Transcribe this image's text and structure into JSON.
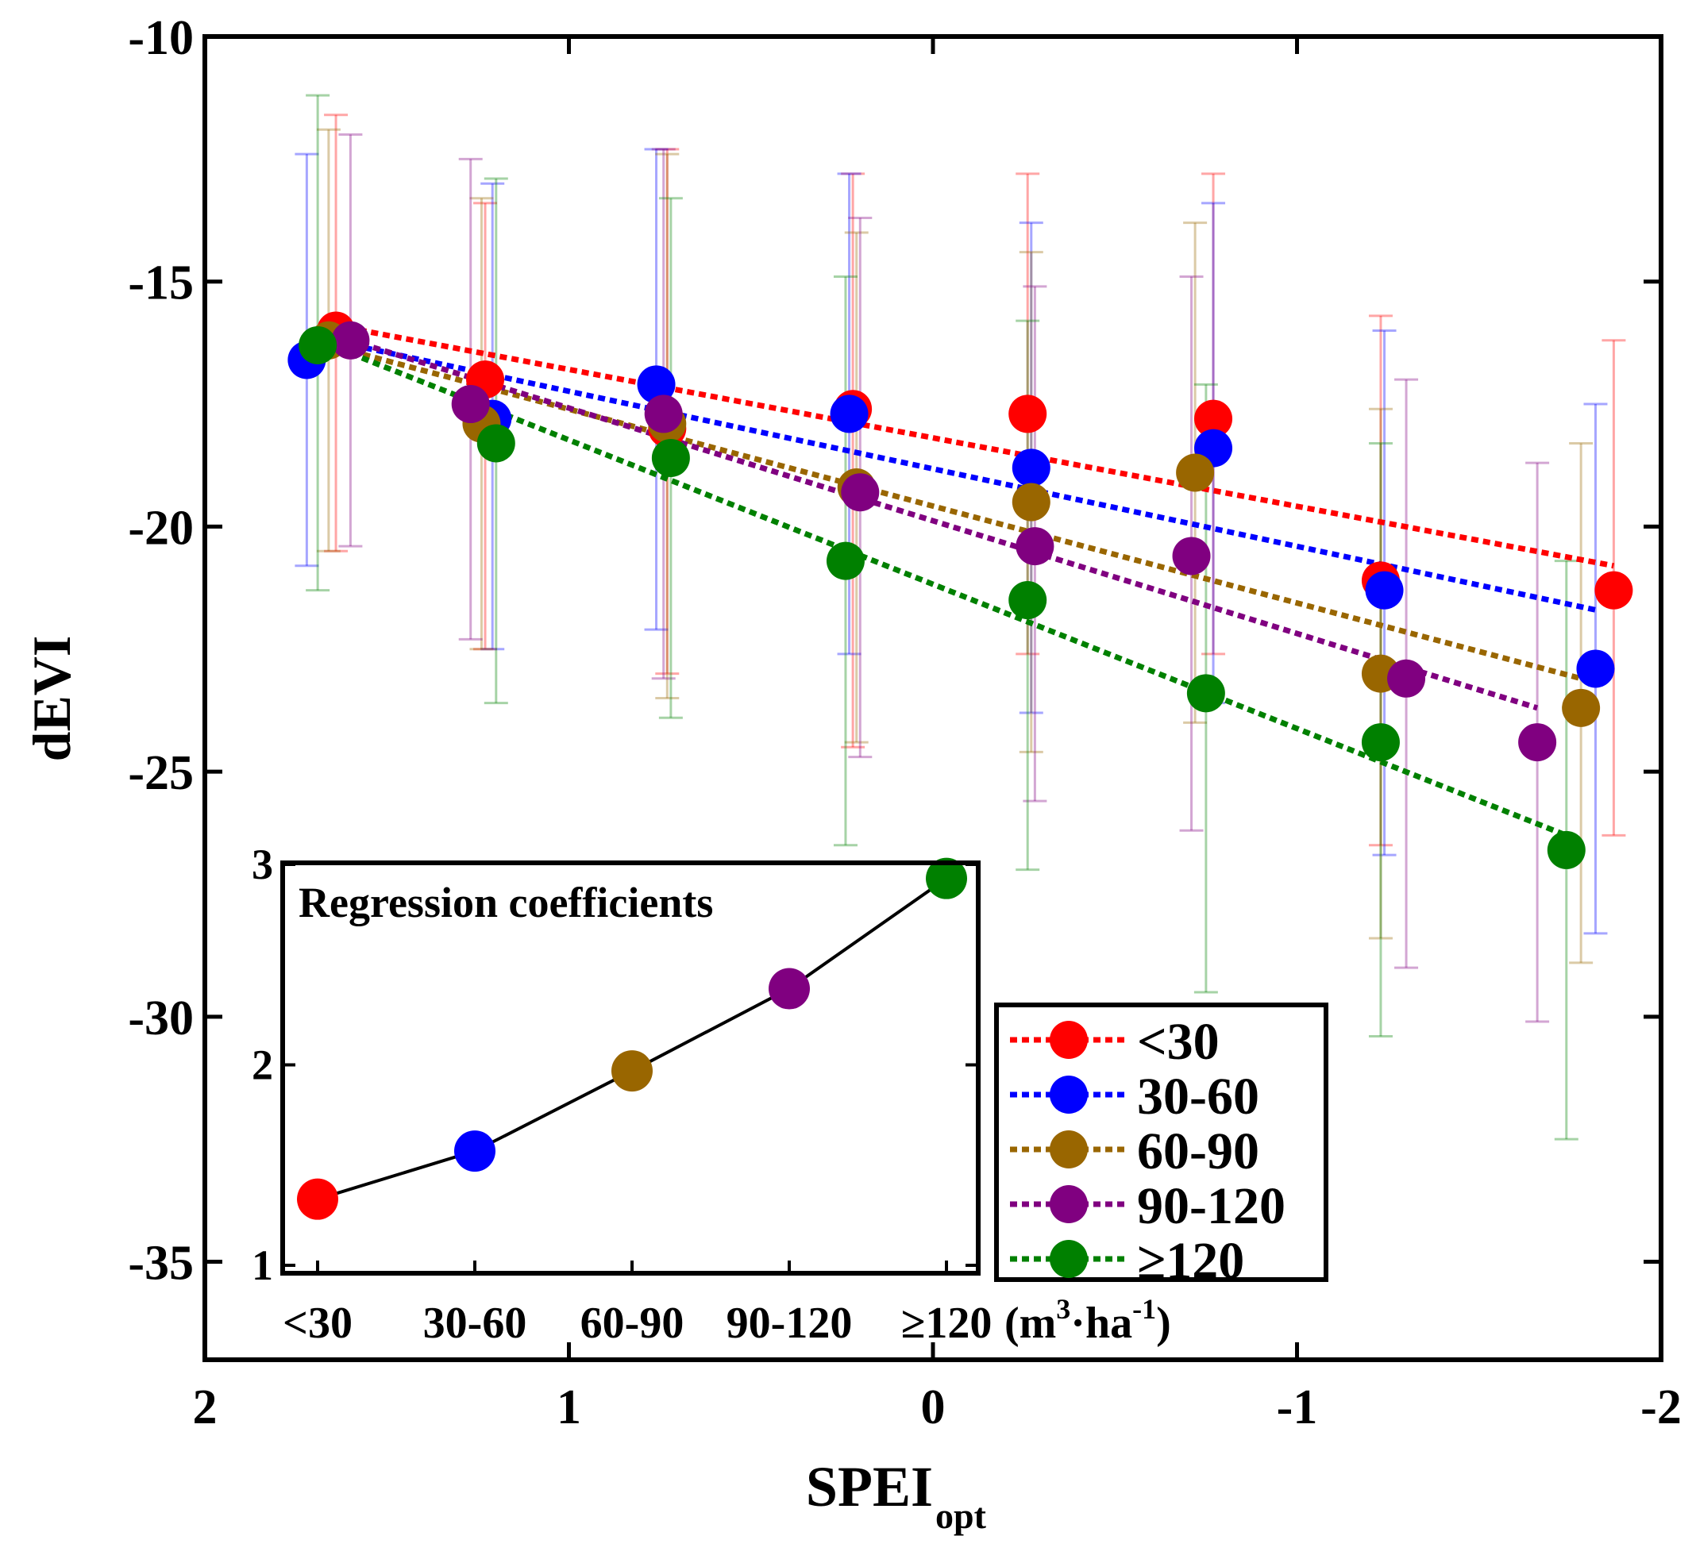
{
  "chart_data": [
    {
      "type": "scatter",
      "title": "",
      "xlabel": "SPEI",
      "xlabel_subscript": "opt",
      "ylabel": "dEVI",
      "xlim": [
        2,
        -2
      ],
      "ylim": [
        -37,
        -10
      ],
      "x_ticks": [
        2,
        1,
        0,
        -1,
        -2
      ],
      "x_tick_labels": [
        "2",
        "1",
        "0",
        "-1",
        "-2"
      ],
      "y_ticks": [
        -10,
        -15,
        -20,
        -25,
        -30,
        -35
      ],
      "y_tick_labels": [
        "-10",
        "-15",
        "-20",
        "-25",
        "-30",
        "-35"
      ],
      "grid": false,
      "legend_position": "lower-right",
      "series": [
        {
          "name": "<30",
          "color": "#ff0000",
          "x": [
            1.64,
            1.23,
            0.73,
            0.22,
            -0.26,
            -0.77,
            -1.23,
            -1.87
          ],
          "y": [
            -16.0,
            -17.0,
            -18.0,
            -17.6,
            -17.7,
            -17.8,
            -21.1,
            -21.3
          ],
          "err_low": [
            -20.5,
            -22.5,
            -23.0,
            -24.5,
            -22.6,
            -22.6,
            -26.5,
            -26.3
          ],
          "err_high": [
            -11.6,
            -13.4,
            -12.3,
            -12.8,
            -12.8,
            -12.8,
            -15.7,
            -16.2
          ],
          "fit_x": [
            1.64,
            -1.87
          ],
          "fit_y": [
            -15.9,
            -20.8
          ]
        },
        {
          "name": "30-60",
          "color": "#0000ff",
          "x": [
            1.72,
            1.21,
            0.76,
            0.23,
            -0.27,
            -0.77,
            -1.24,
            -1.82
          ],
          "y": [
            -16.6,
            -17.8,
            -17.1,
            -17.7,
            -18.8,
            -18.4,
            -21.3,
            -22.9
          ],
          "err_low": [
            -20.8,
            -22.5,
            -22.1,
            -22.6,
            -23.8,
            -23.6,
            -26.7,
            -28.3
          ],
          "err_high": [
            -12.4,
            -13.0,
            -12.3,
            -12.8,
            -13.8,
            -13.4,
            -16.0,
            -17.5
          ],
          "fit_x": [
            1.72,
            -1.82
          ],
          "fit_y": [
            -16.1,
            -21.7
          ]
        },
        {
          "name": "60-90",
          "color": "#996600",
          "x": [
            1.66,
            1.24,
            0.73,
            0.21,
            -0.27,
            -0.72,
            -1.23,
            -1.78
          ],
          "y": [
            -16.2,
            -17.9,
            -17.9,
            -19.2,
            -19.5,
            -18.9,
            -23.0,
            -23.7
          ],
          "err_low": [
            -20.5,
            -22.5,
            -23.5,
            -24.4,
            -24.6,
            -24.0,
            -28.4,
            -28.9
          ],
          "err_high": [
            -11.9,
            -13.3,
            -12.4,
            -14.0,
            -14.4,
            -13.8,
            -17.6,
            -18.3
          ],
          "fit_x": [
            1.66,
            -1.78
          ],
          "fit_y": [
            -16.3,
            -23.1
          ]
        },
        {
          "name": "90-120",
          "color": "#800080",
          "x": [
            1.6,
            1.27,
            0.74,
            0.2,
            -0.28,
            -0.71,
            -1.3,
            -1.66
          ],
          "y": [
            -16.2,
            -17.5,
            -17.7,
            -19.3,
            -20.4,
            -20.6,
            -23.1,
            -24.4
          ],
          "err_low": [
            -20.4,
            -22.3,
            -23.1,
            -24.7,
            -25.6,
            -26.2,
            -29.0,
            -30.1
          ],
          "err_high": [
            -12.0,
            -12.5,
            -12.3,
            -13.7,
            -15.1,
            -14.9,
            -17.0,
            -18.7
          ],
          "fit_x": [
            1.6,
            -1.66
          ],
          "fit_y": [
            -16.2,
            -23.7
          ]
        },
        {
          "name": "≥120",
          "color": "#008000",
          "x": [
            1.69,
            1.2,
            0.72,
            0.24,
            -0.26,
            -0.75,
            -1.23,
            -1.74
          ],
          "y": [
            -16.3,
            -18.3,
            -18.6,
            -20.7,
            -21.5,
            -23.4,
            -24.4,
            -26.6
          ],
          "err_low": [
            -21.3,
            -23.6,
            -23.9,
            -26.5,
            -27.0,
            -29.5,
            -30.4,
            -32.5
          ],
          "err_high": [
            -11.2,
            -12.9,
            -13.3,
            -14.9,
            -15.8,
            -17.1,
            -18.3,
            -20.7
          ],
          "fit_x": [
            1.69,
            -1.74
          ],
          "fit_y": [
            -16.2,
            -26.3
          ]
        }
      ]
    },
    {
      "type": "line",
      "title": "Regression coefficients",
      "categories": [
        "<30",
        "30-60",
        "60-90",
        "90-120",
        "≥120"
      ],
      "unit_label": "(m³·ha⁻¹)",
      "unit_text": "(m",
      "unit_sup1": "3",
      "unit_mid": "·ha",
      "unit_sup2": "-1",
      "unit_close": ")",
      "values": [
        1.33,
        1.57,
        1.97,
        2.38,
        2.93
      ],
      "point_colors": [
        "#ff0000",
        "#0000ff",
        "#996600",
        "#800080",
        "#008000"
      ],
      "line_color": "#000000",
      "ylim": [
        1,
        3
      ],
      "y_ticks": [
        1,
        2,
        3
      ],
      "y_tick_labels": [
        "1",
        "2",
        "3"
      ]
    }
  ]
}
